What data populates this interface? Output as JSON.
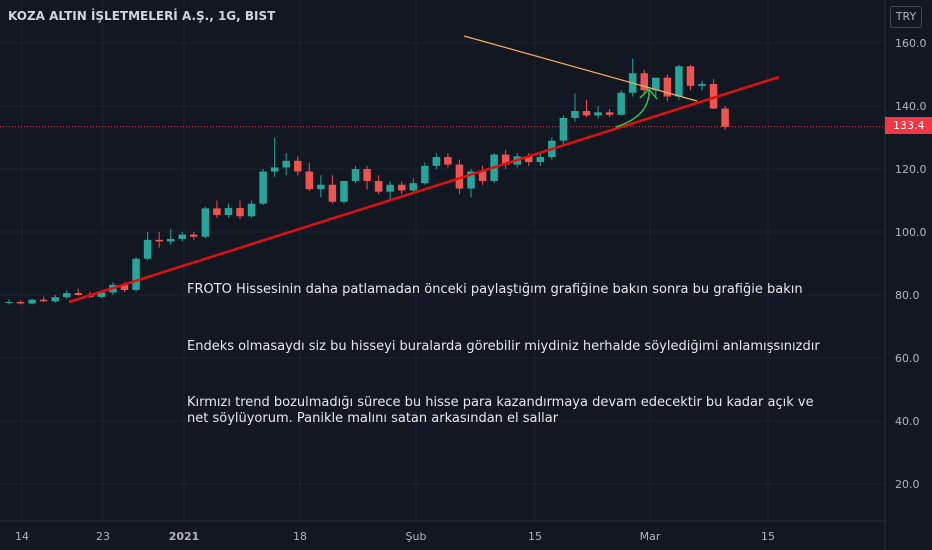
{
  "header": {
    "title": "KOZA ALTIN İŞLETMELERİ A.Ş., 1G, BIST",
    "currency": "TRY"
  },
  "notes": [
    "FROTO Hissesinin daha patlamadan önceki paylaştığım  grafiğine bakın sonra bu grafiğie bakın",
    "Endeks olmasaydı siz bu hisseyi buralarda görebilir miydiniz herhalde söylediğimi anlamışsınızdır",
    "Kırmızı trend bozulmadığı sürece bu hisse para kazandırmaya devam edecektir bu kadar açık ve",
    "net söylüyorum. Panikle malını satan arkasından el sallar"
  ],
  "colors": {
    "up": "#26a69a",
    "down": "#ef5350",
    "trend_support": "#e01010",
    "trend_resistance": "#f5b060",
    "arrow": "#22c55e",
    "price_line": "#f23645"
  },
  "chart_data": {
    "type": "candlestick",
    "title": "KOZA ALTIN İŞLETMELERİ A.Ş., 1G, BIST",
    "ylim": [
      15,
      167
    ],
    "y_ticks": [
      "20.0",
      "40.0",
      "60.0",
      "80.0",
      "100.0",
      "120.0",
      "140.0",
      "160.0"
    ],
    "x_ticks": [
      "14",
      "23",
      "2021",
      "18",
      "Şub",
      "15",
      "Mar",
      "15"
    ],
    "last_price": "133.4",
    "candles": [
      {
        "o": 77.5,
        "h": 78.6,
        "l": 77.0,
        "c": 77.8
      },
      {
        "o": 77.8,
        "h": 78.3,
        "l": 77.0,
        "c": 77.3
      },
      {
        "o": 77.3,
        "h": 78.8,
        "l": 77.0,
        "c": 78.5
      },
      {
        "o": 78.5,
        "h": 79.5,
        "l": 77.8,
        "c": 78.0
      },
      {
        "o": 78.0,
        "h": 80.0,
        "l": 77.5,
        "c": 79.3
      },
      {
        "o": 79.3,
        "h": 81.5,
        "l": 78.8,
        "c": 80.6
      },
      {
        "o": 80.6,
        "h": 82.0,
        "l": 79.8,
        "c": 80.0
      },
      {
        "o": 80.0,
        "h": 81.0,
        "l": 79.0,
        "c": 79.4
      },
      {
        "o": 79.4,
        "h": 81.5,
        "l": 79.0,
        "c": 80.8
      },
      {
        "o": 80.8,
        "h": 84.0,
        "l": 80.0,
        "c": 83.2
      },
      {
        "o": 83.2,
        "h": 84.0,
        "l": 81.0,
        "c": 81.6
      },
      {
        "o": 81.6,
        "h": 92.0,
        "l": 81.0,
        "c": 91.5
      },
      {
        "o": 91.5,
        "h": 100.0,
        "l": 91.0,
        "c": 97.5
      },
      {
        "o": 97.5,
        "h": 100.0,
        "l": 95.0,
        "c": 97.0
      },
      {
        "o": 97.0,
        "h": 101.0,
        "l": 96.0,
        "c": 97.8
      },
      {
        "o": 97.8,
        "h": 100.0,
        "l": 97.0,
        "c": 99.2
      },
      {
        "o": 99.2,
        "h": 100.0,
        "l": 97.5,
        "c": 98.5
      },
      {
        "o": 98.5,
        "h": 108.0,
        "l": 98.0,
        "c": 107.5
      },
      {
        "o": 107.5,
        "h": 110.0,
        "l": 104.5,
        "c": 105.4
      },
      {
        "o": 105.4,
        "h": 109.0,
        "l": 104.5,
        "c": 107.6
      },
      {
        "o": 107.6,
        "h": 110.0,
        "l": 104.0,
        "c": 105.0
      },
      {
        "o": 105.0,
        "h": 110.0,
        "l": 104.5,
        "c": 109.0
      },
      {
        "o": 109.0,
        "h": 120.0,
        "l": 108.5,
        "c": 119.2
      },
      {
        "o": 119.2,
        "h": 130.0,
        "l": 117.5,
        "c": 120.5
      },
      {
        "o": 120.5,
        "h": 125.0,
        "l": 118.0,
        "c": 122.6
      },
      {
        "o": 122.6,
        "h": 124.0,
        "l": 118.0,
        "c": 119.2
      },
      {
        "o": 119.2,
        "h": 122.0,
        "l": 113.0,
        "c": 113.6
      },
      {
        "o": 113.6,
        "h": 118.0,
        "l": 111.0,
        "c": 115.0
      },
      {
        "o": 115.0,
        "h": 118.0,
        "l": 109.0,
        "c": 109.6
      },
      {
        "o": 109.6,
        "h": 116.0,
        "l": 109.0,
        "c": 116.2
      },
      {
        "o": 116.2,
        "h": 121.0,
        "l": 115.5,
        "c": 120.0
      },
      {
        "o": 120.0,
        "h": 121.0,
        "l": 113.5,
        "c": 116.2
      },
      {
        "o": 116.2,
        "h": 118.0,
        "l": 112.0,
        "c": 112.8
      },
      {
        "o": 112.8,
        "h": 116.0,
        "l": 110.0,
        "c": 115.0
      },
      {
        "o": 115.0,
        "h": 116.0,
        "l": 112.0,
        "c": 113.2
      },
      {
        "o": 113.2,
        "h": 117.0,
        "l": 112.5,
        "c": 115.5
      },
      {
        "o": 115.5,
        "h": 122.0,
        "l": 115.0,
        "c": 121.0
      },
      {
        "o": 121.0,
        "h": 125.0,
        "l": 120.0,
        "c": 123.8
      },
      {
        "o": 123.8,
        "h": 125.0,
        "l": 120.5,
        "c": 121.4
      },
      {
        "o": 121.4,
        "h": 123.0,
        "l": 112.0,
        "c": 113.8
      },
      {
        "o": 113.8,
        "h": 120.0,
        "l": 111.0,
        "c": 119.2
      },
      {
        "o": 119.2,
        "h": 121.0,
        "l": 115.0,
        "c": 116.2
      },
      {
        "o": 116.2,
        "h": 125.0,
        "l": 115.5,
        "c": 124.6
      },
      {
        "o": 124.6,
        "h": 126.0,
        "l": 120.0,
        "c": 121.4
      },
      {
        "o": 121.4,
        "h": 125.0,
        "l": 120.5,
        "c": 124.0
      },
      {
        "o": 124.0,
        "h": 125.0,
        "l": 121.0,
        "c": 122.2
      },
      {
        "o": 122.2,
        "h": 125.0,
        "l": 121.0,
        "c": 123.8
      },
      {
        "o": 123.8,
        "h": 130.0,
        "l": 123.0,
        "c": 129.0
      },
      {
        "o": 129.0,
        "h": 137.0,
        "l": 128.0,
        "c": 136.2
      },
      {
        "o": 136.2,
        "h": 144.0,
        "l": 135.0,
        "c": 138.4
      },
      {
        "o": 138.4,
        "h": 142.0,
        "l": 136.5,
        "c": 137.0
      },
      {
        "o": 137.0,
        "h": 140.0,
        "l": 136.0,
        "c": 138.0
      },
      {
        "o": 138.0,
        "h": 139.0,
        "l": 136.5,
        "c": 137.2
      },
      {
        "o": 137.2,
        "h": 145.0,
        "l": 137.0,
        "c": 144.2
      },
      {
        "o": 144.2,
        "h": 155.0,
        "l": 143.0,
        "c": 150.4
      },
      {
        "o": 150.4,
        "h": 151.5,
        "l": 143.5,
        "c": 145.0
      },
      {
        "o": 145.0,
        "h": 148.0,
        "l": 143.0,
        "c": 149.0
      },
      {
        "o": 149.0,
        "h": 150.0,
        "l": 141.5,
        "c": 143.0
      },
      {
        "o": 143.0,
        "h": 153.0,
        "l": 142.0,
        "c": 152.6
      },
      {
        "o": 152.6,
        "h": 153.0,
        "l": 145.0,
        "c": 146.4
      },
      {
        "o": 146.4,
        "h": 148.0,
        "l": 145.0,
        "c": 147.0
      },
      {
        "o": 147.0,
        "h": 148.5,
        "l": 139.0,
        "c": 139.2
      },
      {
        "o": 139.2,
        "h": 140.0,
        "l": 132.5,
        "c": 133.4
      }
    ]
  }
}
